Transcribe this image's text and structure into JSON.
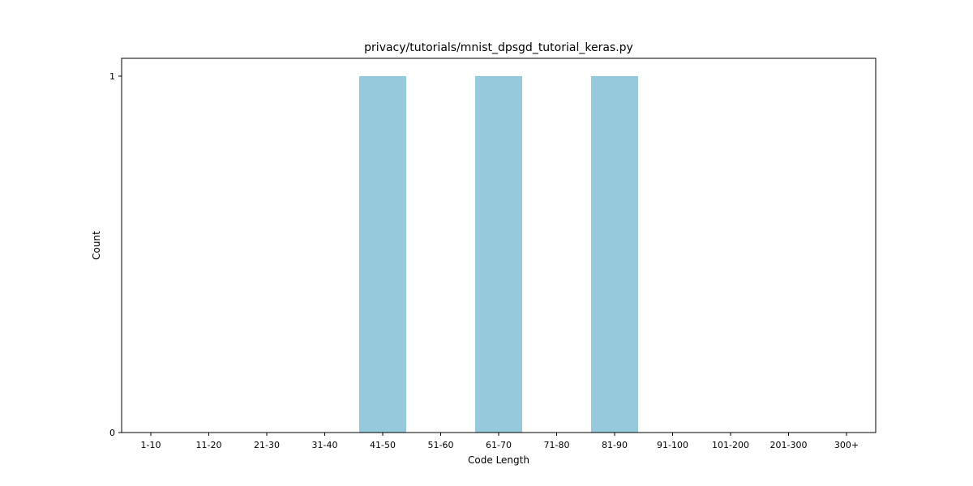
{
  "chart_data": {
    "type": "bar",
    "title": "privacy/tutorials/mnist_dpsgd_tutorial_keras.py",
    "xlabel": "Code Length",
    "ylabel": "Count",
    "categories": [
      "1-10",
      "11-20",
      "21-30",
      "31-40",
      "41-50",
      "51-60",
      "61-70",
      "71-80",
      "81-90",
      "91-100",
      "101-200",
      "201-300",
      "300+"
    ],
    "values": [
      0,
      0,
      0,
      0,
      1,
      0,
      1,
      0,
      1,
      0,
      0,
      0,
      0
    ],
    "ylim": [
      0,
      1.05
    ],
    "yticks": [
      0,
      1
    ],
    "bar_color": "#96c9dc",
    "grid": false,
    "legend": "none"
  }
}
